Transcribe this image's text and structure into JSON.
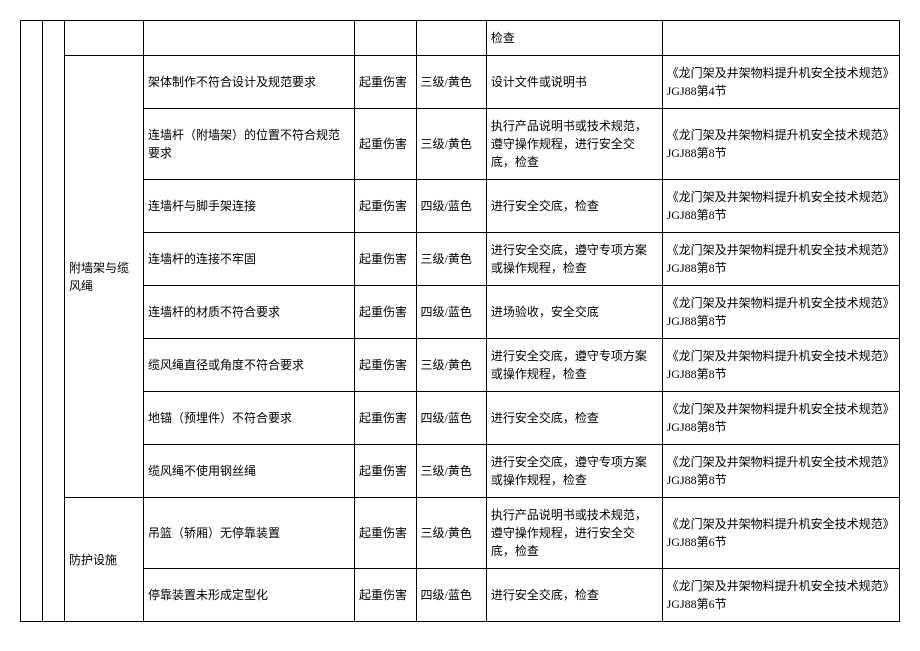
{
  "rows": [
    {
      "c": "",
      "hazard": "",
      "harm": "",
      "level": "",
      "measure": "检查",
      "ref": ""
    },
    {
      "c": "附墙架与缆风绳",
      "hazard": "架体制作不符合设计及规范要求",
      "harm": "起重伤害",
      "level": "三级/黄色",
      "measure": "设计文件或说明书",
      "ref": "《龙门架及井架物料提升机安全技术规范》JGJ88第4节"
    },
    {
      "c": "",
      "hazard": "连墙杆（附墙架）的位置不符合规范要求",
      "harm": "起重伤害",
      "level": "三级/黄色",
      "measure": "执行产品说明书或技术规范，遵守操作规程，进行安全交底，检查",
      "ref": "《龙门架及井架物料提升机安全技术规范》JGJ88第8节"
    },
    {
      "c": "",
      "hazard": "连墙杆与脚手架连接",
      "harm": "起重伤害",
      "level": "四级/蓝色",
      "measure": "进行安全交底，检查",
      "ref": "《龙门架及井架物料提升机安全技术规范》JGJ88第8节"
    },
    {
      "c": "",
      "hazard": "连墙杆的连接不牢固",
      "harm": "起重伤害",
      "level": "三级/黄色",
      "measure": "进行安全交底，遵守专项方案或操作规程，检查",
      "ref": "《龙门架及井架物料提升机安全技术规范》JGJ88第8节"
    },
    {
      "c": "",
      "hazard": "连墙杆的材质不符合要求",
      "harm": "起重伤害",
      "level": "四级/蓝色",
      "measure": "进场验收，安全交底",
      "ref": "《龙门架及井架物料提升机安全技术规范》JGJ88第8节"
    },
    {
      "c": "",
      "hazard": "缆风绳直径或角度不符合要求",
      "harm": "起重伤害",
      "level": "三级/黄色",
      "measure": "进行安全交底，遵守专项方案或操作规程，检查",
      "ref": "《龙门架及井架物料提升机安全技术规范》JGJ88第8节"
    },
    {
      "c": "",
      "hazard": "地锚（预埋件）不符合要求",
      "harm": "起重伤害",
      "level": "四级/蓝色",
      "measure": "进行安全交底，检查",
      "ref": "《龙门架及井架物料提升机安全技术规范》JGJ88第8节"
    },
    {
      "c": "",
      "hazard": "缆风绳不使用钢丝绳",
      "harm": "起重伤害",
      "level": "三级/黄色",
      "measure": "进行安全交底，遵守专项方案或操作规程，检查",
      "ref": "《龙门架及井架物料提升机安全技术规范》JGJ88第8节"
    },
    {
      "c": "防护设施",
      "hazard": "吊篮（轿厢）无停靠装置",
      "harm": "起重伤害",
      "level": "三级/黄色",
      "measure": "执行产品说明书或技术规范，遵守操作规程，进行安全交底，检查",
      "ref": "《龙门架及井架物料提升机安全技术规范》JGJ88第6节"
    },
    {
      "c": "",
      "hazard": "停靠装置未形成定型化",
      "harm": "起重伤害",
      "level": "四级/蓝色",
      "measure": "进行安全交底，检查",
      "ref": "《龙门架及井架物料提升机安全技术规范》JGJ88第6节"
    }
  ]
}
